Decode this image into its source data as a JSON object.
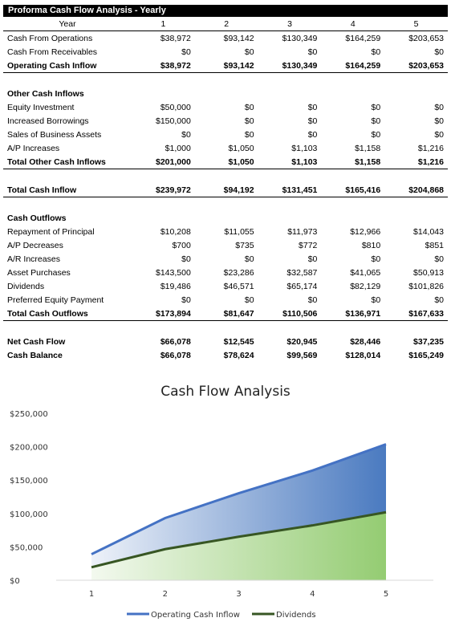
{
  "title": "Proforma Cash Flow Analysis - Yearly",
  "header": {
    "label": "Year",
    "years": [
      "1",
      "2",
      "3",
      "4",
      "5"
    ]
  },
  "rows": [
    {
      "type": "data",
      "label": "Cash From Operations",
      "values": [
        "$38,972",
        "$93,142",
        "$130,349",
        "$164,259",
        "$203,653"
      ]
    },
    {
      "type": "data",
      "label": "Cash From Receivables",
      "values": [
        "$0",
        "$0",
        "$0",
        "$0",
        "$0"
      ]
    },
    {
      "type": "total",
      "label": "Operating Cash Inflow",
      "values": [
        "$38,972",
        "$93,142",
        "$130,349",
        "$164,259",
        "$203,653"
      ]
    },
    {
      "type": "spacer"
    },
    {
      "type": "section",
      "label": "Other Cash Inflows"
    },
    {
      "type": "data",
      "label": "Equity Investment",
      "values": [
        "$50,000",
        "$0",
        "$0",
        "$0",
        "$0"
      ]
    },
    {
      "type": "data",
      "label": "Increased Borrowings",
      "values": [
        "$150,000",
        "$0",
        "$0",
        "$0",
        "$0"
      ]
    },
    {
      "type": "data",
      "label": "Sales of Business Assets",
      "values": [
        "$0",
        "$0",
        "$0",
        "$0",
        "$0"
      ]
    },
    {
      "type": "data",
      "label": "A/P Increases",
      "values": [
        "$1,000",
        "$1,050",
        "$1,103",
        "$1,158",
        "$1,216"
      ]
    },
    {
      "type": "total",
      "label": "Total Other Cash Inflows",
      "values": [
        "$201,000",
        "$1,050",
        "$1,103",
        "$1,158",
        "$1,216"
      ]
    },
    {
      "type": "spacer"
    },
    {
      "type": "total",
      "label": "Total Cash Inflow",
      "values": [
        "$239,972",
        "$94,192",
        "$131,451",
        "$165,416",
        "$204,868"
      ]
    },
    {
      "type": "spacer"
    },
    {
      "type": "section",
      "label": "Cash Outflows"
    },
    {
      "type": "data",
      "label": "Repayment of Principal",
      "values": [
        "$10,208",
        "$11,055",
        "$11,973",
        "$12,966",
        "$14,043"
      ]
    },
    {
      "type": "data",
      "label": "A/P Decreases",
      "values": [
        "$700",
        "$735",
        "$772",
        "$810",
        "$851"
      ]
    },
    {
      "type": "data",
      "label": "A/R Increases",
      "values": [
        "$0",
        "$0",
        "$0",
        "$0",
        "$0"
      ]
    },
    {
      "type": "data",
      "label": "Asset Purchases",
      "values": [
        "$143,500",
        "$23,286",
        "$32,587",
        "$41,065",
        "$50,913"
      ]
    },
    {
      "type": "data",
      "label": "Dividends",
      "values": [
        "$19,486",
        "$46,571",
        "$65,174",
        "$82,129",
        "$101,826"
      ]
    },
    {
      "type": "data",
      "label": "Preferred Equity Payment",
      "values": [
        "$0",
        "$0",
        "$0",
        "$0",
        "$0"
      ]
    },
    {
      "type": "total",
      "label": "Total Cash Outflows",
      "values": [
        "$173,894",
        "$81,647",
        "$110,506",
        "$136,971",
        "$167,633"
      ]
    },
    {
      "type": "spacer"
    },
    {
      "type": "bold",
      "label": "Net Cash Flow",
      "values": [
        "$66,078",
        "$12,545",
        "$20,945",
        "$28,446",
        "$37,235"
      ]
    },
    {
      "type": "bold",
      "label": "Cash Balance",
      "values": [
        "$66,078",
        "$78,624",
        "$99,569",
        "$128,014",
        "$165,249"
      ]
    }
  ],
  "chart_data": {
    "type": "area",
    "title": "Cash Flow Analysis",
    "x": [
      1,
      2,
      3,
      4,
      5
    ],
    "ylim": [
      0,
      250000
    ],
    "yticks": [
      0,
      50000,
      100000,
      150000,
      200000,
      250000
    ],
    "ytick_labels": [
      "$0",
      "$50,000",
      "$100,000",
      "$150,000",
      "$200,000",
      "$250,000"
    ],
    "series": [
      {
        "name": "Operating Cash Inflow",
        "values": [
          38972,
          93142,
          130349,
          164259,
          203653
        ],
        "color": "#4472C4"
      },
      {
        "name": "Dividends",
        "values": [
          19486,
          46571,
          65174,
          82129,
          101826
        ],
        "color": "#375623"
      }
    ],
    "legend": "bottom",
    "grid": false
  }
}
